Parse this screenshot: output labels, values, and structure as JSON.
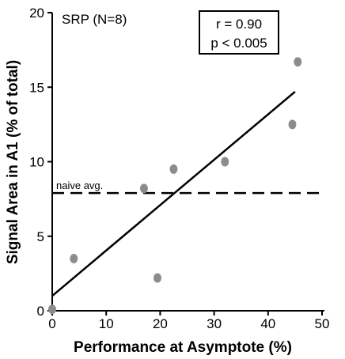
{
  "chart_data": {
    "type": "scatter",
    "title": "",
    "xlabel": "Performance at Asymptote (%)",
    "ylabel": "Signal Area in A1 (% of total)",
    "xlim": [
      0,
      50
    ],
    "ylim": [
      0,
      20
    ],
    "xticks": [
      0,
      10,
      20,
      30,
      40,
      50
    ],
    "yticks": [
      0,
      5,
      10,
      15,
      20
    ],
    "grid": false,
    "series": [
      {
        "points": [
          {
            "x": 0,
            "y": 0.1
          },
          {
            "x": 4,
            "y": 3.5
          },
          {
            "x": 17,
            "y": 8.2
          },
          {
            "x": 19.5,
            "y": 2.2
          },
          {
            "x": 22.5,
            "y": 9.5
          },
          {
            "x": 32,
            "y": 10
          },
          {
            "x": 44.5,
            "y": 12.5
          },
          {
            "x": 45.5,
            "y": 16.7
          }
        ],
        "color": "#8c8c8c"
      }
    ],
    "regression_line": {
      "x_start": 0,
      "y_start": 1.0,
      "x_end": 45,
      "y_end": 14.7
    },
    "reference_line": {
      "y": 7.9,
      "label": "naive avg.",
      "style": "dashed"
    },
    "annotations": {
      "group": "SRP (N=8)",
      "stats_r": "r = 0.90",
      "stats_p": "p < 0.005"
    }
  }
}
